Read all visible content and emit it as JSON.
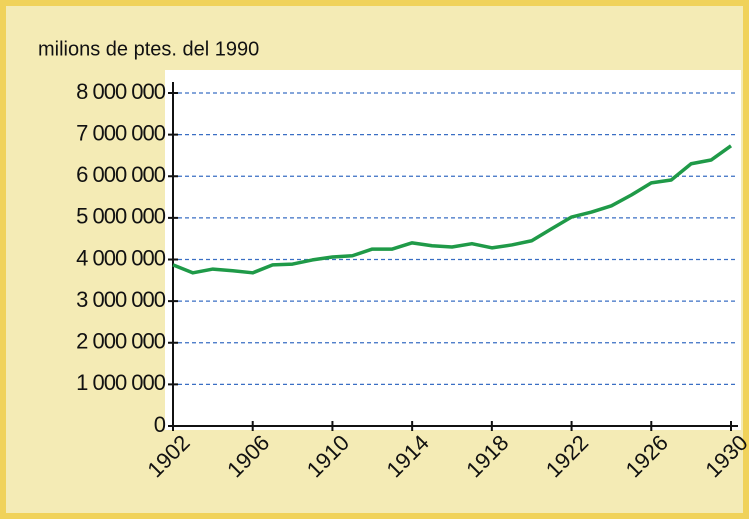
{
  "chart_data": {
    "type": "line",
    "ylabel": "milions de ptes. del 1990",
    "x": [
      1902,
      1903,
      1904,
      1905,
      1906,
      1907,
      1908,
      1909,
      1910,
      1911,
      1912,
      1913,
      1914,
      1915,
      1916,
      1917,
      1918,
      1919,
      1920,
      1921,
      1922,
      1923,
      1924,
      1925,
      1926,
      1927,
      1928,
      1929,
      1930
    ],
    "series": [
      {
        "name": null,
        "color": "#1f9a48",
        "values": [
          3870000,
          3680000,
          3770000,
          3730000,
          3680000,
          3870000,
          3890000,
          3990000,
          4060000,
          4090000,
          4250000,
          4250000,
          4400000,
          4330000,
          4300000,
          4380000,
          4280000,
          4350000,
          4450000,
          4740000,
          5020000,
          5140000,
          5290000,
          5550000,
          5840000,
          5910000,
          6300000,
          6390000,
          6730000
        ]
      }
    ],
    "xlim": [
      1902,
      1930
    ],
    "xticks": [
      1902,
      1906,
      1910,
      1914,
      1918,
      1922,
      1926,
      1930
    ],
    "ylim": [
      0,
      8000000
    ],
    "yticks": [
      0,
      {
        "value": 1000000,
        "label": "1 000 000"
      },
      {
        "value": 2000000,
        "label": "2 000 000"
      },
      {
        "value": 3000000,
        "label": "3 000 000"
      },
      {
        "value": 4000000,
        "label": "4 000 000"
      },
      {
        "value": 5000000,
        "label": "5 000 000"
      },
      {
        "value": 6000000,
        "label": "6 000 000"
      },
      {
        "value": 7000000,
        "label": "7 000 000"
      },
      {
        "value": 8000000,
        "label": "8 000 000"
      }
    ],
    "grid": true
  }
}
